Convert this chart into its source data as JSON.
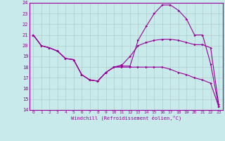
{
  "xlabel": "Windchill (Refroidissement éolien,°C)",
  "xlim": [
    -0.5,
    23.5
  ],
  "ylim": [
    14,
    24
  ],
  "yticks": [
    14,
    15,
    16,
    17,
    18,
    19,
    20,
    21,
    22,
    23,
    24
  ],
  "xticks": [
    0,
    1,
    2,
    3,
    4,
    5,
    6,
    7,
    8,
    9,
    10,
    11,
    12,
    13,
    14,
    15,
    16,
    17,
    18,
    19,
    20,
    21,
    22,
    23
  ],
  "bg_color": "#c8eaea",
  "line_color": "#990099",
  "grid_color": "#b0cccc",
  "lines": [
    {
      "x": [
        0,
        1,
        2,
        3,
        4,
        5,
        6,
        7,
        8,
        9,
        10,
        11,
        12,
        13,
        14,
        15,
        16,
        17,
        18,
        19,
        20,
        21,
        22,
        23
      ],
      "y": [
        21,
        20,
        19.8,
        19.5,
        18.8,
        18.7,
        17.3,
        16.8,
        16.7,
        17.5,
        18.0,
        18.1,
        18.1,
        20.5,
        21.8,
        23.0,
        23.8,
        23.8,
        23.3,
        22.5,
        21.0,
        21.0,
        18.3,
        14.3
      ]
    },
    {
      "x": [
        0,
        1,
        2,
        3,
        4,
        5,
        6,
        7,
        8,
        9,
        10,
        11,
        12,
        13,
        14,
        15,
        16,
        17,
        18,
        19,
        20,
        21,
        22,
        23
      ],
      "y": [
        21,
        20,
        19.8,
        19.5,
        18.8,
        18.7,
        17.3,
        16.8,
        16.7,
        17.5,
        18.0,
        18.2,
        19.0,
        20.0,
        20.3,
        20.5,
        20.6,
        20.6,
        20.5,
        20.3,
        20.1,
        20.1,
        19.8,
        14.5
      ]
    },
    {
      "x": [
        0,
        1,
        2,
        3,
        4,
        5,
        6,
        7,
        8,
        9,
        10,
        11,
        12,
        13,
        14,
        15,
        16,
        17,
        18,
        19,
        20,
        21,
        22,
        23
      ],
      "y": [
        21,
        20,
        19.8,
        19.5,
        18.8,
        18.7,
        17.3,
        16.8,
        16.7,
        17.5,
        18.0,
        18.0,
        18.0,
        18.0,
        18.0,
        18.0,
        18.0,
        17.8,
        17.5,
        17.3,
        17.0,
        16.8,
        16.5,
        14.3
      ]
    }
  ]
}
